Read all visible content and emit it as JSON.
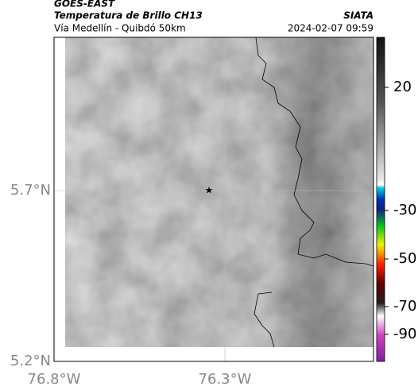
{
  "header": {
    "title": "GOES-EAST",
    "subtitle": "Temperatura de Brillo CH13",
    "route": "Vía Medellín - Quibdó 50km",
    "source": "SIATA",
    "timestamp": "2024-02-07 09:59"
  },
  "map": {
    "lat_labels": [
      "5.7°N",
      "5.2°N"
    ],
    "lon_labels": [
      "76.8°W",
      "76.3°W"
    ]
  },
  "colorbar": {
    "ticks": [
      "20",
      "-30",
      "-50",
      "-70",
      "-90"
    ]
  }
}
